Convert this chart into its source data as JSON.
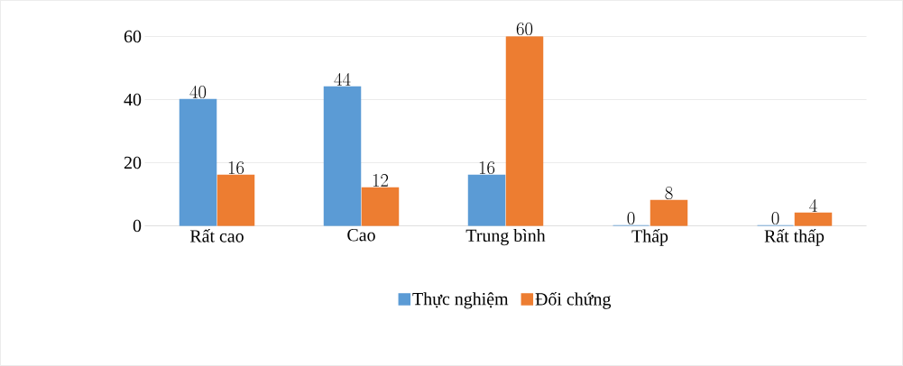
{
  "chart_data": {
    "type": "bar",
    "categories": [
      "Rất cao",
      "Cao",
      "Trung bình",
      "Thấp",
      "Rất thấp"
    ],
    "series": [
      {
        "name": "Thực nghiệm",
        "color": "#5b9bd5",
        "values": [
          40,
          44,
          16,
          0,
          0
        ]
      },
      {
        "name": "Đối chứng",
        "color": "#ed7d31",
        "values": [
          16,
          12,
          60,
          8,
          4
        ]
      }
    ],
    "ylim": [
      0,
      60
    ],
    "yticks": [
      0,
      20,
      40,
      60
    ],
    "grid": "y",
    "legend": "bottom",
    "data_labels": true
  }
}
